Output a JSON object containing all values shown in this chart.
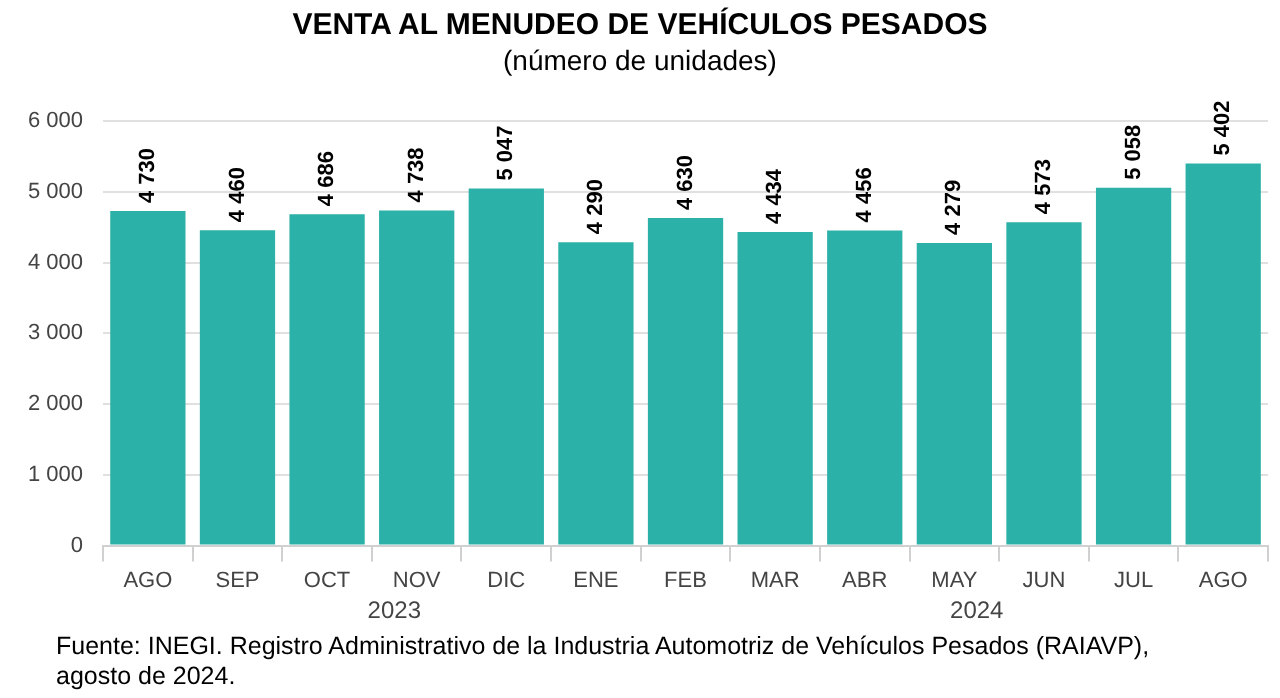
{
  "chart_data": {
    "type": "bar",
    "title": "VENTA AL MENUDEO DE VEHÍCULOS PESADOS",
    "subtitle": "(número de unidades)",
    "categories": [
      "AGO",
      "SEP",
      "OCT",
      "NOV",
      "DIC",
      "ENE",
      "FEB",
      "MAR",
      "ABR",
      "MAY",
      "JUN",
      "JUL",
      "AGO"
    ],
    "values": [
      4730,
      4460,
      4686,
      4738,
      5047,
      4290,
      4630,
      4434,
      4456,
      4279,
      4573,
      5058,
      5402
    ],
    "value_labels": [
      "4 730",
      "4 460",
      "4 686",
      "4 738",
      "5 047",
      "4 290",
      "4 630",
      "4 434",
      "4 456",
      "4 279",
      "4 573",
      "5 058",
      "5 402"
    ],
    "color": "#2cb1a9",
    "ylim": [
      0,
      6000
    ],
    "yticks": [
      {
        "value": 0,
        "label": "0"
      },
      {
        "value": 1000,
        "label": "1 000"
      },
      {
        "value": 2000,
        "label": "2 000"
      },
      {
        "value": 3000,
        "label": "3 000"
      },
      {
        "value": 4000,
        "label": "4 000"
      },
      {
        "value": 5000,
        "label": "5 000"
      },
      {
        "value": 6000,
        "label": "6 000"
      }
    ],
    "grid": "y",
    "legend": false,
    "annotations": [
      "2023",
      "2024",
      "Fuente: INEGI. Registro Administrativo de la Industria Automotriz de Vehículos Pesados (RAIAVP), agosto de 2024."
    ]
  }
}
